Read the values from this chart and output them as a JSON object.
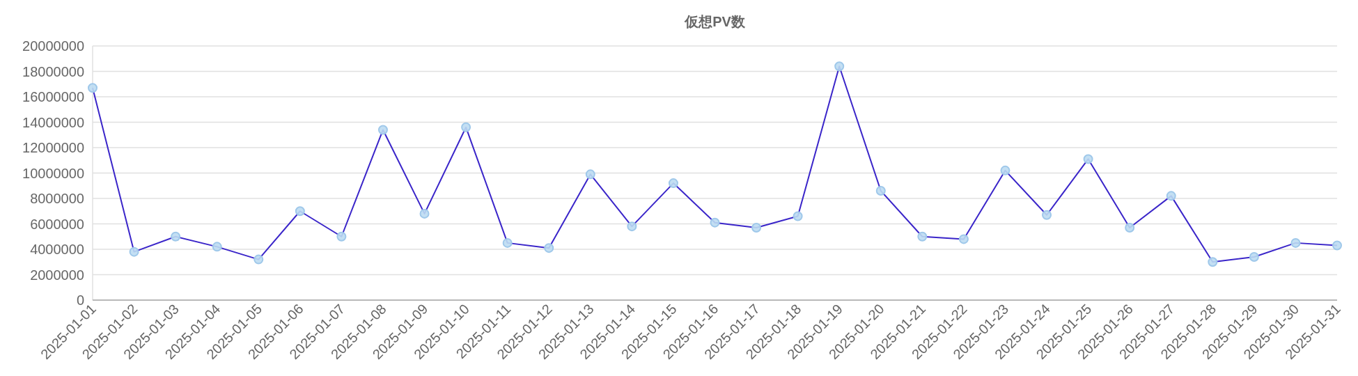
{
  "chart_data": {
    "type": "line",
    "title": "仮想PV数",
    "categories": [
      "2025-01-01",
      "2025-01-02",
      "2025-01-03",
      "2025-01-04",
      "2025-01-05",
      "2025-01-06",
      "2025-01-07",
      "2025-01-08",
      "2025-01-09",
      "2025-01-10",
      "2025-01-11",
      "2025-01-12",
      "2025-01-13",
      "2025-01-14",
      "2025-01-15",
      "2025-01-16",
      "2025-01-17",
      "2025-01-18",
      "2025-01-19",
      "2025-01-20",
      "2025-01-21",
      "2025-01-22",
      "2025-01-23",
      "2025-01-24",
      "2025-01-25",
      "2025-01-26",
      "2025-01-27",
      "2025-01-28",
      "2025-01-29",
      "2025-01-30",
      "2025-01-31"
    ],
    "series": [
      {
        "color": "#3a25c9",
        "values": [
          16700000,
          3800000,
          5000000,
          4200000,
          3200000,
          7000000,
          5000000,
          13400000,
          6800000,
          13600000,
          4500000,
          4100000,
          9900000,
          5800000,
          9200000,
          6100000,
          5700000,
          6600000,
          18400000,
          8600000,
          5000000,
          4800000,
          10200000,
          6700000,
          11100000,
          5700000,
          8200000,
          3000000,
          3400000,
          4500000,
          4300000
        ]
      }
    ],
    "ylim": [
      0,
      20000000
    ],
    "yticks": [
      0,
      2000000,
      4000000,
      6000000,
      8000000,
      10000000,
      12000000,
      14000000,
      16000000,
      18000000,
      20000000
    ],
    "grid": "y",
    "marker": "circle",
    "line_style": "solid"
  }
}
